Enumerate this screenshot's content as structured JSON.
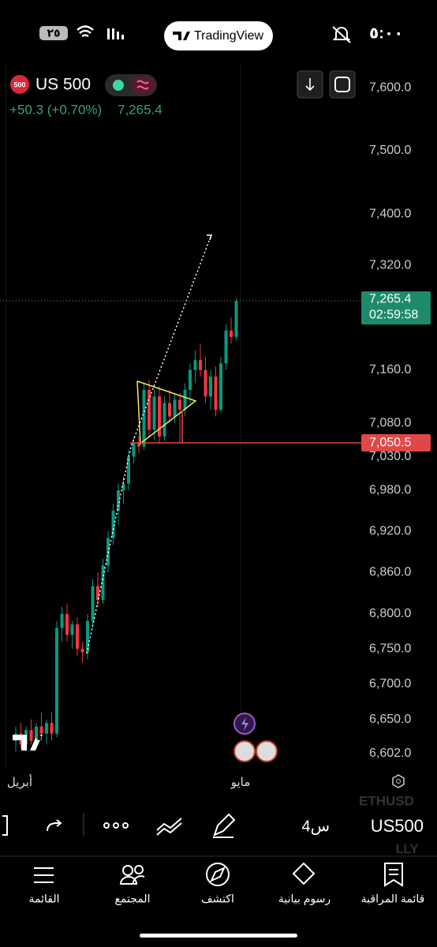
{
  "status_bar": {
    "battery": "٢٥",
    "time": "٥:٠٠",
    "app": "TradingView"
  },
  "symbol": {
    "badge": "500",
    "name": "US 500",
    "change": "+50.3 (+0.70%)",
    "last": "7,265.4"
  },
  "chart_data": {
    "type": "candlestick",
    "log_scale": true,
    "ylim": [
      6580,
      7640
    ],
    "yticks": [
      {
        "value": 7600,
        "label": "7,600.0"
      },
      {
        "value": 7500,
        "label": "7,500.0"
      },
      {
        "value": 7400,
        "label": "7,400.0"
      },
      {
        "value": 7320,
        "label": "7,320.0"
      },
      {
        "value": 7160,
        "label": "7,160.0"
      },
      {
        "value": 7080,
        "label": "7,080.0"
      },
      {
        "value": 7030,
        "label": "7,030.0"
      },
      {
        "value": 6980,
        "label": "6,980.0"
      },
      {
        "value": 6920,
        "label": "6,920.0"
      },
      {
        "value": 6860,
        "label": "6,860.0"
      },
      {
        "value": 6800,
        "label": "6,800.0"
      },
      {
        "value": 6750,
        "label": "6,750.0"
      },
      {
        "value": 6700,
        "label": "6,700.0"
      },
      {
        "value": 6650,
        "label": "6,650.0"
      },
      {
        "value": 6602,
        "label": "6,602.0"
      }
    ],
    "last_price": {
      "value": 7265.4,
      "label": "7,265.4",
      "countdown": "02:59:58"
    },
    "alert_line": {
      "value": 7050.5,
      "label": "7,050.5"
    },
    "x_labels": [
      "أبريل",
      "مايو"
    ],
    "up_color": "#089981",
    "down_color": "#f23645",
    "candles": {
      "open": [
        6620,
        6630,
        6615,
        6635,
        6620,
        6640,
        6630,
        6645,
        6630,
        6780,
        6800,
        6770,
        6785,
        6750,
        6745,
        6790,
        6840,
        6820,
        6870,
        6910,
        6950,
        6980,
        6990,
        7030,
        7050,
        7045,
        7130,
        7070,
        7120,
        7060,
        7110,
        7090,
        7115,
        7100,
        7130,
        7160,
        7175,
        7160,
        7120,
        7150,
        7100,
        7170,
        7220,
        7210
      ],
      "high": [
        6640,
        6645,
        6640,
        6650,
        6645,
        6660,
        6650,
        6660,
        6790,
        6810,
        6815,
        6790,
        6795,
        6760,
        6800,
        6850,
        6860,
        6880,
        6920,
        6960,
        6990,
        7000,
        7040,
        7060,
        7060,
        7140,
        7145,
        7130,
        7135,
        7120,
        7130,
        7125,
        7125,
        7140,
        7170,
        7190,
        7200,
        7180,
        7160,
        7165,
        7180,
        7230,
        7240,
        7270
      ],
      "low": [
        6605,
        6610,
        6605,
        6615,
        6610,
        6620,
        6615,
        6620,
        6625,
        6760,
        6760,
        6750,
        6740,
        6730,
        6735,
        6780,
        6810,
        6815,
        6860,
        6900,
        6930,
        6960,
        6980,
        7020,
        7035,
        7040,
        7060,
        7055,
        7050,
        7055,
        7080,
        7080,
        7050,
        7090,
        7110,
        7140,
        7150,
        7110,
        7100,
        7090,
        7095,
        7160,
        7200,
        7205
      ],
      "close": [
        6630,
        6615,
        6635,
        6620,
        6640,
        6630,
        6645,
        6630,
        6780,
        6800,
        6770,
        6785,
        6750,
        6745,
        6790,
        6840,
        6820,
        6870,
        6910,
        6950,
        6980,
        6990,
        7030,
        7050,
        7045,
        7130,
        7070,
        7120,
        7060,
        7110,
        7090,
        7115,
        7100,
        7130,
        7160,
        7175,
        7160,
        7120,
        7150,
        7100,
        7170,
        7220,
        7210,
        7265
      ]
    }
  },
  "toolbar": {
    "interval": "4س",
    "symbol": "US500",
    "watermark_top": "ETHUSD",
    "watermark_bottom": "LLY"
  },
  "nav": [
    "القائمة",
    "المجتمع",
    "اكتشف",
    "رسوم بيانية",
    "قائمة المراقبة"
  ]
}
